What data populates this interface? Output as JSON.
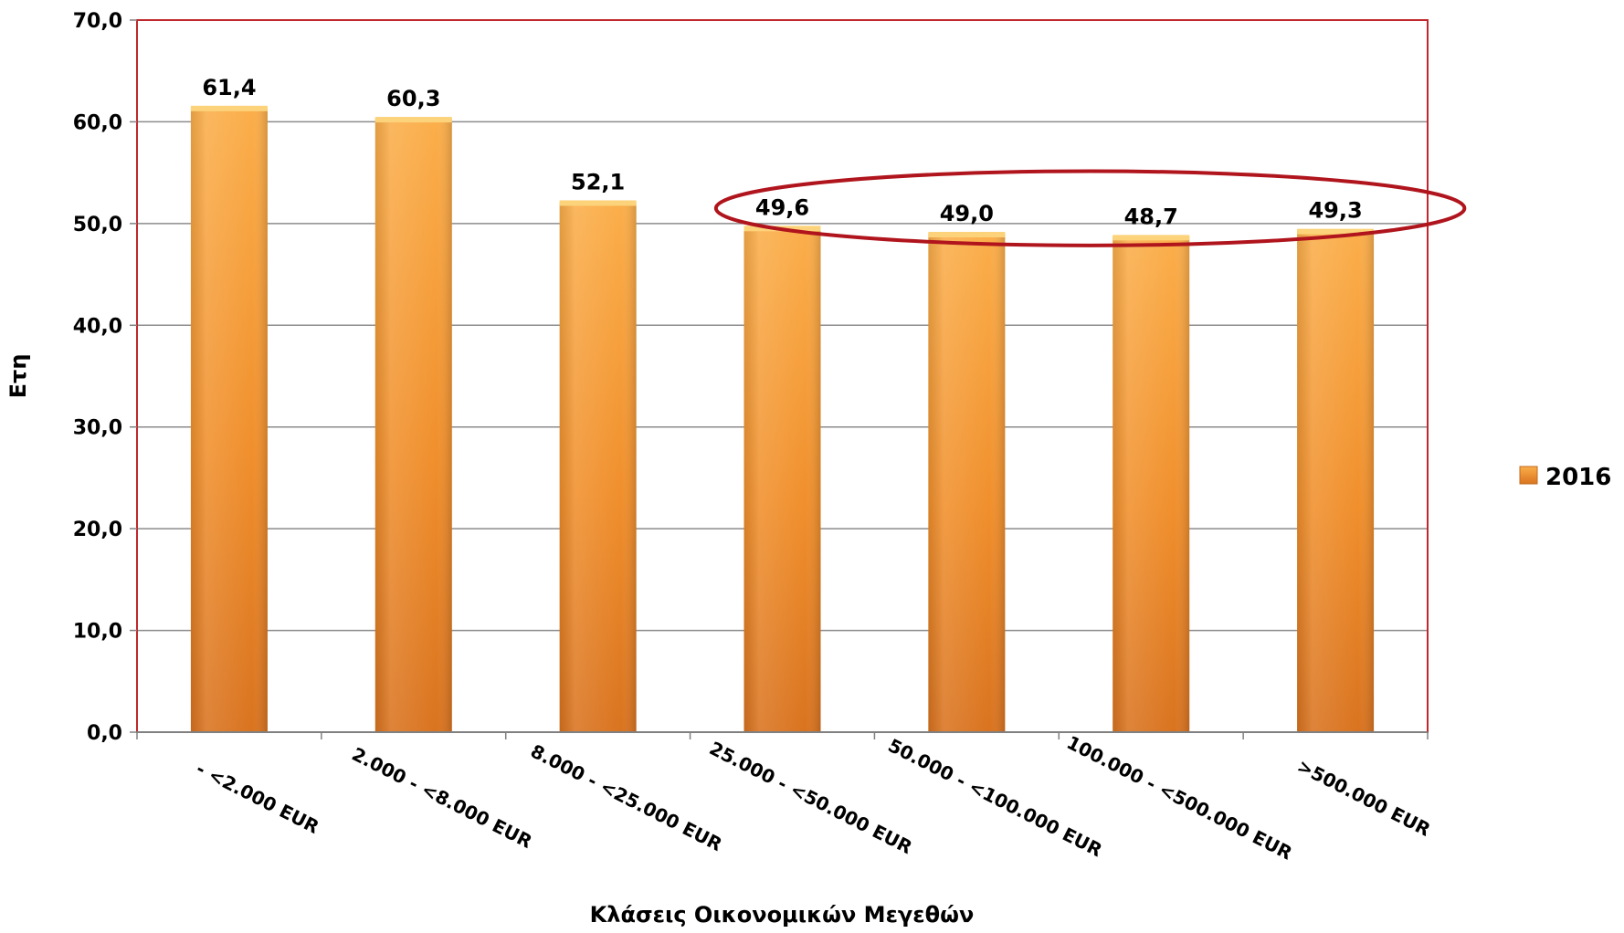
{
  "chart_data": {
    "type": "bar",
    "title": "",
    "xlabel": "Κλάσεις Οικονομικών Μεγεθών",
    "ylabel": "Ετη",
    "ylim": [
      0,
      70
    ],
    "yticks": [
      "0,0",
      "10,0",
      "20,0",
      "30,0",
      "40,0",
      "50,0",
      "60,0",
      "70,0"
    ],
    "ytick_values": [
      0,
      10,
      20,
      30,
      40,
      50,
      60,
      70
    ],
    "grid": true,
    "legend_position": "right",
    "categories": [
      "- <2.000 EUR",
      "2.000 - <8.000 EUR",
      "8.000 - <25.000 EUR",
      "25.000 - <50.000 EUR",
      "50.000 - <100.000 EUR",
      "100.000 - <500.000 EUR",
      ">500.000 EUR"
    ],
    "series": [
      {
        "name": "2016",
        "values": [
          61.4,
          60.3,
          52.1,
          49.6,
          49.0,
          48.7,
          49.3
        ],
        "labels": [
          "61,4",
          "60,3",
          "52,1",
          "49,6",
          "49,0",
          "48,7",
          "49,3"
        ]
      }
    ],
    "colors": {
      "bar_light": "#f9a33c",
      "bar_dark": "#d9731f",
      "border": "#c0272d",
      "highlight": "#b0141c"
    },
    "annotation": "highlight ellipse around categories 25.000 - <50.000 EUR through >500.000 EUR"
  }
}
